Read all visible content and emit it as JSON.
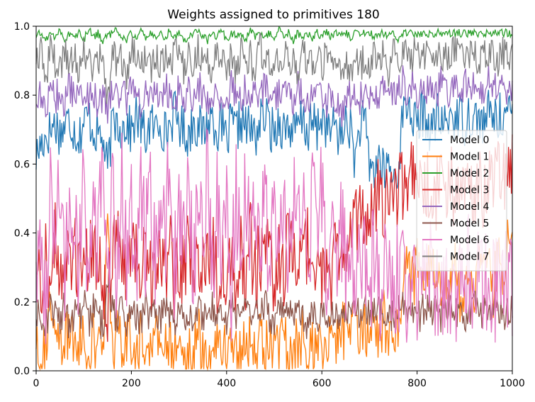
{
  "chart_data": {
    "type": "line",
    "title": "Weights assigned to primitives 180",
    "xlabel": "",
    "ylabel": "",
    "xlim": [
      0,
      1000
    ],
    "ylim": [
      0.0,
      1.0
    ],
    "x_ticks": [
      "0",
      "200",
      "400",
      "600",
      "800",
      "1000"
    ],
    "y_ticks": [
      "0.0",
      "0.2",
      "0.4",
      "0.6",
      "0.8",
      "1.0"
    ],
    "grid": false,
    "legend_position": "center-right",
    "sample_step": 10,
    "series": [
      {
        "name": "Model 0",
        "color": "#1f77b4",
        "values": [
          0.62,
          0.66,
          0.68,
          0.7,
          0.72,
          0.69,
          0.71,
          0.73,
          0.7,
          0.68,
          0.72,
          0.74,
          0.7,
          0.69,
          0.67,
          0.58,
          0.71,
          0.73,
          0.7,
          0.72,
          0.69,
          0.74,
          0.71,
          0.68,
          0.72,
          0.7,
          0.73,
          0.69,
          0.71,
          0.75,
          0.72,
          0.7,
          0.68,
          0.73,
          0.71,
          0.69,
          0.72,
          0.74,
          0.7,
          0.71,
          0.66,
          0.72,
          0.69,
          0.73,
          0.71,
          0.7,
          0.68,
          0.72,
          0.74,
          0.71,
          0.69,
          0.73,
          0.7,
          0.72,
          0.68,
          0.71,
          0.73,
          0.69,
          0.72,
          0.7,
          0.74,
          0.71,
          0.69,
          0.72,
          0.66,
          0.73,
          0.7,
          0.61,
          0.71,
          0.72,
          0.6,
          0.58,
          0.62,
          0.57,
          0.6,
          0.55,
          0.59,
          0.74,
          0.78,
          0.74,
          0.7,
          0.75,
          0.73,
          0.69,
          0.74,
          0.72,
          0.71,
          0.75,
          0.73,
          0.74,
          0.72,
          0.75,
          0.73,
          0.74,
          0.71,
          0.75,
          0.74,
          0.73,
          0.75,
          0.74,
          0.74
        ]
      },
      {
        "name": "Model 1",
        "color": "#ff7f0e",
        "values": [
          0.1,
          0.06,
          0.08,
          0.2,
          0.05,
          0.09,
          0.07,
          0.12,
          0.06,
          0.1,
          0.08,
          0.05,
          0.09,
          0.07,
          0.06,
          0.42,
          0.08,
          0.1,
          0.06,
          0.09,
          0.07,
          0.05,
          0.1,
          0.08,
          0.06,
          0.09,
          0.07,
          0.1,
          0.05,
          0.08,
          0.06,
          0.09,
          0.04,
          0.07,
          0.1,
          0.06,
          0.08,
          0.05,
          0.09,
          0.07,
          0.06,
          0.1,
          0.08,
          0.05,
          0.09,
          0.07,
          0.06,
          0.1,
          0.08,
          0.05,
          0.09,
          0.07,
          0.1,
          0.06,
          0.08,
          0.05,
          0.09,
          0.07,
          0.06,
          0.1,
          0.08,
          0.05,
          0.09,
          0.07,
          0.15,
          0.1,
          0.08,
          0.12,
          0.09,
          0.11,
          0.14,
          0.13,
          0.12,
          0.15,
          0.1,
          0.16,
          0.12,
          0.28,
          0.34,
          0.26,
          0.3,
          0.22,
          0.33,
          0.25,
          0.3,
          0.2,
          0.28,
          0.24,
          0.31,
          0.22,
          0.27,
          0.3,
          0.21,
          0.34,
          0.25,
          0.3,
          0.22,
          0.36,
          0.28,
          0.38,
          0.41
        ]
      },
      {
        "name": "Model 2",
        "color": "#2ca02c",
        "values": [
          0.97,
          0.98,
          0.96,
          0.98,
          0.97,
          0.99,
          0.96,
          0.98,
          0.97,
          0.98,
          0.96,
          0.99,
          0.97,
          0.98,
          0.96,
          0.97,
          0.98,
          0.99,
          0.97,
          0.96,
          0.98,
          0.97,
          0.99,
          0.96,
          0.98,
          0.97,
          0.98,
          0.96,
          0.99,
          0.97,
          0.98,
          0.96,
          0.97,
          0.98,
          0.99,
          0.97,
          0.96,
          0.98,
          0.97,
          0.99,
          0.96,
          0.98,
          0.97,
          0.98,
          0.96,
          0.99,
          0.97,
          0.98,
          0.96,
          0.98,
          0.97,
          0.99,
          0.97,
          0.98,
          0.96,
          0.98,
          0.97,
          0.98,
          0.96,
          0.98,
          0.97,
          0.98,
          0.97,
          0.98,
          0.97,
          0.98,
          0.97,
          0.98,
          0.97,
          0.98,
          0.98,
          0.97,
          0.98,
          0.98,
          0.97,
          0.98,
          0.96,
          0.98,
          0.98,
          0.98,
          0.97,
          0.98,
          0.98,
          0.98,
          0.98,
          0.98,
          0.98,
          0.98,
          0.98,
          0.98,
          0.98,
          0.98,
          0.98,
          0.98,
          0.98,
          0.98,
          0.98,
          0.98,
          0.98,
          0.98,
          0.98
        ]
      },
      {
        "name": "Model 3",
        "color": "#d62728",
        "values": [
          0.3,
          0.25,
          0.35,
          0.22,
          0.4,
          0.28,
          0.33,
          0.26,
          0.38,
          0.3,
          0.24,
          0.36,
          0.29,
          0.34,
          0.27,
          0.2,
          0.31,
          0.37,
          0.26,
          0.33,
          0.29,
          0.35,
          0.24,
          0.38,
          0.3,
          0.27,
          0.34,
          0.29,
          0.36,
          0.25,
          0.33,
          0.28,
          0.37,
          0.3,
          0.26,
          0.34,
          0.29,
          0.38,
          0.27,
          0.33,
          0.3,
          0.36,
          0.25,
          0.34,
          0.29,
          0.37,
          0.27,
          0.33,
          0.3,
          0.35,
          0.26,
          0.34,
          0.29,
          0.37,
          0.28,
          0.33,
          0.3,
          0.36,
          0.26,
          0.34,
          0.29,
          0.35,
          0.28,
          0.33,
          0.41,
          0.36,
          0.45,
          0.4,
          0.47,
          0.43,
          0.5,
          0.46,
          0.52,
          0.48,
          0.54,
          0.5,
          0.53,
          0.55,
          0.52,
          0.56,
          0.5,
          0.54,
          0.51,
          0.55,
          0.52,
          0.56,
          0.5,
          0.54,
          0.53,
          0.55,
          0.51,
          0.56,
          0.52,
          0.54,
          0.5,
          0.55,
          0.53,
          0.56,
          0.57,
          0.58,
          0.59
        ]
      },
      {
        "name": "Model 4",
        "color": "#9467bd",
        "values": [
          0.78,
          0.8,
          0.76,
          0.82,
          0.79,
          0.81,
          0.77,
          0.83,
          0.8,
          0.78,
          0.82,
          0.79,
          0.81,
          0.77,
          0.8,
          0.75,
          0.82,
          0.79,
          0.81,
          0.78,
          0.83,
          0.8,
          0.77,
          0.82,
          0.79,
          0.81,
          0.78,
          0.83,
          0.8,
          0.77,
          0.82,
          0.79,
          0.81,
          0.78,
          0.83,
          0.8,
          0.77,
          0.82,
          0.79,
          0.81,
          0.78,
          0.83,
          0.8,
          0.77,
          0.82,
          0.79,
          0.81,
          0.78,
          0.83,
          0.8,
          0.77,
          0.82,
          0.79,
          0.81,
          0.78,
          0.83,
          0.8,
          0.77,
          0.82,
          0.79,
          0.81,
          0.78,
          0.8,
          0.79,
          0.75,
          0.78,
          0.8,
          0.82,
          0.79,
          0.81,
          0.78,
          0.82,
          0.8,
          0.83,
          0.81,
          0.79,
          0.82,
          0.84,
          0.8,
          0.83,
          0.79,
          0.84,
          0.81,
          0.83,
          0.8,
          0.84,
          0.82,
          0.8,
          0.83,
          0.81,
          0.84,
          0.8,
          0.83,
          0.82,
          0.8,
          0.84,
          0.81,
          0.83,
          0.82,
          0.81,
          0.83
        ]
      },
      {
        "name": "Model 5",
        "color": "#8c564b",
        "values": [
          0.15,
          0.18,
          0.12,
          0.2,
          0.16,
          0.14,
          0.19,
          0.13,
          0.17,
          0.15,
          0.2,
          0.14,
          0.18,
          0.16,
          0.13,
          0.26,
          0.17,
          0.15,
          0.19,
          0.14,
          0.18,
          0.16,
          0.13,
          0.2,
          0.15,
          0.17,
          0.14,
          0.19,
          0.16,
          0.13,
          0.18,
          0.15,
          0.17,
          0.14,
          0.2,
          0.16,
          0.13,
          0.18,
          0.15,
          0.17,
          0.14,
          0.19,
          0.16,
          0.13,
          0.18,
          0.15,
          0.17,
          0.14,
          0.2,
          0.16,
          0.13,
          0.18,
          0.15,
          0.17,
          0.14,
          0.19,
          0.16,
          0.13,
          0.18,
          0.15,
          0.17,
          0.14,
          0.19,
          0.16,
          0.18,
          0.15,
          0.17,
          0.2,
          0.16,
          0.18,
          0.15,
          0.19,
          0.17,
          0.16,
          0.18,
          0.15,
          0.17,
          0.19,
          0.16,
          0.18,
          0.15,
          0.17,
          0.19,
          0.16,
          0.18,
          0.15,
          0.17,
          0.19,
          0.16,
          0.18,
          0.15,
          0.17,
          0.19,
          0.16,
          0.18,
          0.15,
          0.17,
          0.19,
          0.16,
          0.18,
          0.17
        ]
      },
      {
        "name": "Model 6",
        "color": "#e377c2",
        "values": [
          0.3,
          0.45,
          0.2,
          0.55,
          0.35,
          0.6,
          0.25,
          0.5,
          0.4,
          0.3,
          0.58,
          0.22,
          0.48,
          0.36,
          0.6,
          0.3,
          0.52,
          0.27,
          0.56,
          0.33,
          0.46,
          0.24,
          0.58,
          0.38,
          0.5,
          0.28,
          0.55,
          0.34,
          0.6,
          0.26,
          0.49,
          0.37,
          0.57,
          0.23,
          0.52,
          0.31,
          0.59,
          0.27,
          0.47,
          0.36,
          0.55,
          0.24,
          0.5,
          0.33,
          0.58,
          0.29,
          0.46,
          0.38,
          0.56,
          0.25,
          0.51,
          0.32,
          0.59,
          0.28,
          0.48,
          0.35,
          0.55,
          0.26,
          0.5,
          0.34,
          0.57,
          0.3,
          0.45,
          0.37,
          0.42,
          0.3,
          0.38,
          0.27,
          0.35,
          0.3,
          0.26,
          0.32,
          0.24,
          0.3,
          0.22,
          0.28,
          0.25,
          0.3,
          0.2,
          0.27,
          0.23,
          0.3,
          0.21,
          0.28,
          0.24,
          0.3,
          0.22,
          0.27,
          0.2,
          0.29,
          0.23,
          0.3,
          0.21,
          0.28,
          0.24,
          0.27,
          0.22,
          0.29,
          0.23,
          0.28,
          0.25
        ]
      },
      {
        "name": "Model 7",
        "color": "#7f7f7f",
        "values": [
          0.88,
          0.92,
          0.85,
          0.94,
          0.9,
          0.87,
          0.93,
          0.89,
          0.91,
          0.86,
          0.94,
          0.9,
          0.88,
          0.92,
          0.87,
          0.8,
          0.93,
          0.89,
          0.91,
          0.86,
          0.94,
          0.9,
          0.88,
          0.92,
          0.87,
          0.93,
          0.89,
          0.91,
          0.86,
          0.94,
          0.9,
          0.88,
          0.92,
          0.87,
          0.93,
          0.89,
          0.91,
          0.86,
          0.94,
          0.9,
          0.88,
          0.92,
          0.87,
          0.93,
          0.89,
          0.91,
          0.86,
          0.94,
          0.9,
          0.88,
          0.92,
          0.87,
          0.93,
          0.89,
          0.91,
          0.86,
          0.94,
          0.9,
          0.88,
          0.92,
          0.87,
          0.93,
          0.89,
          0.91,
          0.85,
          0.9,
          0.87,
          0.92,
          0.88,
          0.91,
          0.86,
          0.93,
          0.89,
          0.92,
          0.87,
          0.94,
          0.9,
          0.93,
          0.92,
          0.91,
          0.93,
          0.9,
          0.92,
          0.91,
          0.93,
          0.9,
          0.92,
          0.91,
          0.93,
          0.9,
          0.92,
          0.91,
          0.93,
          0.9,
          0.92,
          0.91,
          0.93,
          0.9,
          0.92,
          0.91,
          0.92
        ]
      }
    ]
  }
}
